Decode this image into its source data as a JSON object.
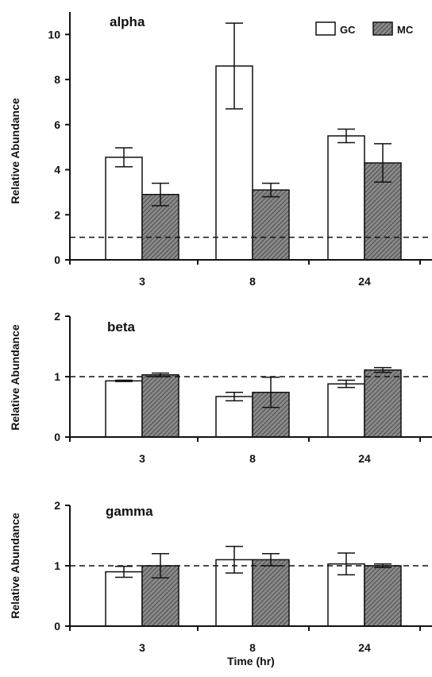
{
  "colors": {
    "GC": "#ffffff",
    "MC": "#8a8a8a",
    "hatch": "#3a3a3a",
    "axis": "#111111"
  },
  "legend": {
    "items": [
      {
        "label": "GC"
      },
      {
        "label": "MC"
      }
    ]
  },
  "chart_data": [
    {
      "type": "bar",
      "title": "alpha",
      "xlabel": "",
      "ylabel": "Relative Abundance",
      "categories": [
        "3",
        "8",
        "24"
      ],
      "ylim": [
        0,
        11
      ],
      "yticks": [
        0,
        2,
        4,
        6,
        8,
        10
      ],
      "reference_line": 1,
      "series": [
        {
          "name": "GC",
          "values": [
            4.55,
            8.6,
            5.5
          ],
          "errors": [
            0.42,
            1.9,
            0.3
          ]
        },
        {
          "name": "MC",
          "values": [
            2.9,
            3.1,
            4.3
          ],
          "errors": [
            0.5,
            0.3,
            0.85
          ]
        }
      ]
    },
    {
      "type": "bar",
      "title": "beta",
      "xlabel": "",
      "ylabel": "Relative Abundance",
      "categories": [
        "3",
        "8",
        "24"
      ],
      "ylim": [
        0,
        2
      ],
      "yticks": [
        0,
        1,
        2
      ],
      "reference_line": 1,
      "series": [
        {
          "name": "GC",
          "values": [
            0.93,
            0.67,
            0.88
          ],
          "errors": [
            0.01,
            0.07,
            0.06
          ]
        },
        {
          "name": "MC",
          "values": [
            1.03,
            0.74,
            1.11
          ],
          "errors": [
            0.03,
            0.25,
            0.04
          ]
        }
      ]
    },
    {
      "type": "bar",
      "title": "gamma",
      "xlabel": "Time (hr)",
      "ylabel": "Relative Abundance",
      "categories": [
        "3",
        "8",
        "24"
      ],
      "ylim": [
        0,
        2
      ],
      "yticks": [
        0,
        1,
        2
      ],
      "reference_line": 1,
      "series": [
        {
          "name": "GC",
          "values": [
            0.9,
            1.1,
            1.03
          ],
          "errors": [
            0.09,
            0.22,
            0.18
          ]
        },
        {
          "name": "MC",
          "values": [
            1.0,
            1.1,
            1.0
          ],
          "errors": [
            0.2,
            0.1,
            0.03
          ]
        }
      ]
    }
  ]
}
